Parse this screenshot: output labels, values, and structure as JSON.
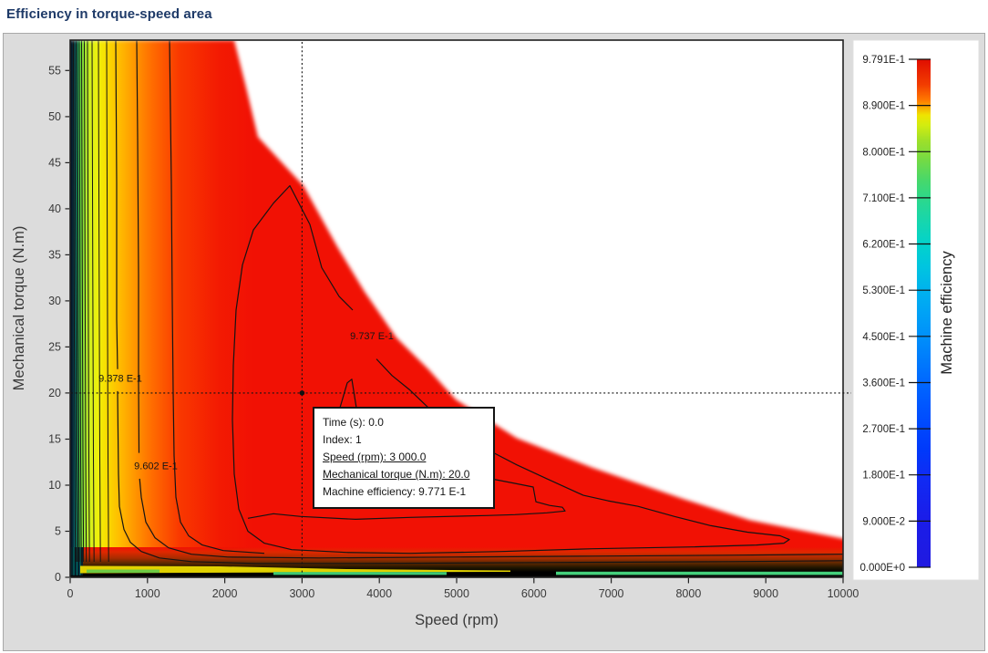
{
  "title": "Efficiency in torque-speed area",
  "tooltip": {
    "lines": [
      {
        "text": "Time (s): 0.0",
        "underline": false
      },
      {
        "text": "Index: 1",
        "underline": false
      },
      {
        "text": "Speed (rpm): 3 000.0",
        "underline": true
      },
      {
        "text": "Mechanical torque (N.m): 20.0",
        "underline": true
      },
      {
        "text": "Machine efficiency: 9.771 E-1",
        "underline": false
      }
    ]
  },
  "chart_data": {
    "type": "heatmap",
    "subtype": "filled-contour-efficiency-map",
    "title": "Efficiency in torque-speed area",
    "xlabel": "Speed (rpm)",
    "ylabel": "Mechanical torque (N.m)",
    "xlim": [
      0,
      10000
    ],
    "ylim": [
      0,
      58.3
    ],
    "x_ticks": [
      0,
      1000,
      2000,
      3000,
      4000,
      5000,
      6000,
      7000,
      8000,
      9000,
      10000
    ],
    "y_ticks": [
      0,
      5,
      10,
      15,
      20,
      25,
      30,
      35,
      40,
      45,
      50,
      55
    ],
    "grid": false,
    "colorbar": {
      "label": "Machine efficiency",
      "vmin": 0.0,
      "vmax": 0.9791,
      "tick_labels": [
        "9.791E-1",
        "8.900E-1",
        "8.000E-1",
        "7.100E-1",
        "6.200E-1",
        "5.300E-1",
        "4.500E-1",
        "3.600E-1",
        "2.700E-1",
        "1.800E-1",
        "9.000E-2",
        "0.000E+0"
      ]
    },
    "crosshair": {
      "speed_rpm": 3000,
      "torque_nm": 20,
      "efficiency": "9.771 E-1"
    },
    "max_torque_envelope": [
      [
        0,
        58.3
      ],
      [
        2122,
        58.3
      ],
      [
        2275,
        53.2
      ],
      [
        2429,
        47.8
      ],
      [
        3018,
        42.5
      ],
      [
        3454,
        35.9
      ],
      [
        3808,
        31.0
      ],
      [
        4221,
        26.0
      ],
      [
        4633,
        22.6
      ],
      [
        4987,
        19.3
      ],
      [
        5777,
        15.1
      ],
      [
        6755,
        11.9
      ],
      [
        7934,
        8.5
      ],
      [
        8795,
        6.2
      ],
      [
        10000,
        4.2
      ]
    ],
    "contours": [
      {
        "label": "9.378 E-1",
        "label_at": [
          649,
          21.6
        ],
        "segments": [
          [
            [
              590,
              58.3
            ],
            [
              601,
              42.8
            ],
            [
              601,
              28.0
            ],
            [
              613,
              22.6
            ]
          ],
          [
            [
              613,
              20.2
            ],
            [
              625,
              11.2
            ],
            [
              637,
              7.7
            ],
            [
              696,
              5.2
            ],
            [
              778,
              3.8
            ],
            [
              920,
              2.8
            ],
            [
              1156,
              2.1
            ],
            [
              1568,
              1.7
            ],
            [
              2394,
              1.5
            ],
            [
              3809,
              1.5
            ],
            [
              6167,
              1.6
            ],
            [
              8526,
              1.7
            ],
            [
              10000,
              1.8
            ]
          ]
        ]
      },
      {
        "label": "9.602 E-1",
        "label_at": [
          1108,
          12.1
        ],
        "segments": [
          [
            [
              861,
              58.3
            ],
            [
              873,
              47.8
            ],
            [
              884,
              32.9
            ],
            [
              884,
              21.1
            ],
            [
              890,
              13.5
            ]
          ],
          [
            [
              898,
              10.7
            ],
            [
              920,
              8.7
            ],
            [
              979,
              6.0
            ],
            [
              1097,
              4.3
            ],
            [
              1274,
              3.2
            ],
            [
              1568,
              2.5
            ],
            [
              2040,
              2.2
            ],
            [
              3219,
              2.1
            ],
            [
              4988,
              2.2
            ],
            [
              6757,
              2.3
            ],
            [
              8526,
              2.4
            ],
            [
              10000,
              2.5
            ]
          ]
        ]
      },
      {
        "label": null,
        "label_at": null,
        "segments": [
          [
            [
              1285,
              58.3
            ],
            [
              1309,
              42.8
            ],
            [
              1321,
              30.0
            ],
            [
              1333,
              20.1
            ],
            [
              1344,
              13.2
            ],
            [
              1368,
              8.7
            ],
            [
              1427,
              6.0
            ],
            [
              1533,
              4.5
            ],
            [
              1710,
              3.5
            ],
            [
              1981,
              2.9
            ],
            [
              2512,
              2.6
            ]
          ]
        ]
      },
      {
        "label": "9.737 E-1",
        "label_at": [
          3903,
          26.2
        ],
        "segments": [
          [
            [
              3962,
              23.7
            ],
            [
              4163,
              21.9
            ],
            [
              4399,
              20.3
            ],
            [
              4634,
              18.4
            ],
            [
              5342,
              14.1
            ],
            [
              5778,
              12.2
            ],
            [
              6167,
              10.7
            ],
            [
              6639,
              8.9
            ],
            [
              6958,
              8.3
            ],
            [
              7347,
              7.7
            ],
            [
              7818,
              6.6
            ],
            [
              8290,
              5.6
            ],
            [
              8762,
              4.9
            ],
            [
              9186,
              4.5
            ],
            [
              9304,
              4.1
            ],
            [
              9233,
              3.7
            ],
            [
              8880,
              3.5
            ],
            [
              8054,
              3.3
            ],
            [
              6757,
              3.1
            ],
            [
              5578,
              2.8
            ],
            [
              4399,
              2.6
            ],
            [
              3573,
              2.7
            ],
            [
              2866,
              3.0
            ],
            [
              2512,
              3.7
            ],
            [
              2300,
              5.0
            ],
            [
              2182,
              7.4
            ],
            [
              2123,
              11.2
            ],
            [
              2099,
              17.1
            ],
            [
              2111,
              23.0
            ],
            [
              2146,
              29.0
            ],
            [
              2229,
              33.9
            ],
            [
              2370,
              37.7
            ],
            [
              2630,
              40.6
            ],
            [
              2842,
              42.5
            ],
            [
              3101,
              38.3
            ],
            [
              3255,
              33.6
            ],
            [
              3479,
              30.5
            ],
            [
              3656,
              29.0
            ]
          ]
        ]
      },
      {
        "label": null,
        "label_at": null,
        "segments": [
          [
            [
              3491,
              18.4
            ],
            [
              3585,
              21.1
            ],
            [
              3644,
              21.5
            ],
            [
              3703,
              18.4
            ]
          ],
          [
            [
              5377,
              10.8
            ],
            [
              5754,
              10.2
            ],
            [
              5990,
              9.8
            ],
            [
              6026,
              8.2
            ],
            [
              6203,
              7.8
            ],
            [
              6368,
              7.6
            ],
            [
              6403,
              7.2
            ],
            [
              6167,
              7.0
            ],
            [
              5754,
              6.8
            ],
            [
              5377,
              6.7
            ],
            [
              4399,
              6.5
            ],
            [
              3691,
              6.3
            ],
            [
              2984,
              6.6
            ],
            [
              2630,
              6.9
            ],
            [
              2300,
              6.4
            ]
          ]
        ]
      }
    ],
    "minor_contours_rpm": [
      41,
      59,
      77,
      94,
      118,
      147,
      183,
      224,
      283,
      366,
      472
    ]
  },
  "colors": {
    "panel_bg": "#dcdcdc",
    "panel_border": "#a8a8a8",
    "title_text": "#1e3a68",
    "field_red": "#f11104",
    "contour_line": "#141414",
    "axis_text": "#3a3a3a",
    "white_region": "#ffffff",
    "left_band_stops": [
      [
        "0%",
        "#010318"
      ],
      [
        "1.8%",
        "#083440"
      ],
      [
        "3%",
        "#00b2aa"
      ],
      [
        "4%",
        "#20cc6e"
      ],
      [
        "5.6%",
        "#66dc3e"
      ],
      [
        "8.5%",
        "#aae82e"
      ],
      [
        "11.5%",
        "#d8f01a"
      ],
      [
        "15.5%",
        "#f0f00a"
      ],
      [
        "20%",
        "#f8dc00"
      ],
      [
        "27%",
        "#ffbc00"
      ],
      [
        "35%",
        "#ff9800"
      ],
      [
        "45%",
        "#ff6c00"
      ],
      [
        "60%",
        "#f93800"
      ],
      [
        "82%",
        "#f31a02"
      ],
      [
        "100%",
        "#f11104"
      ]
    ],
    "bottom_band_stops": [
      [
        "0%",
        "#f11104"
      ],
      [
        "15%",
        "#e02800"
      ],
      [
        "35%",
        "#a62c00"
      ],
      [
        "50%",
        "#5c2800"
      ],
      [
        "65%",
        "#1c1400"
      ],
      [
        "78%",
        "#000000"
      ],
      [
        "100%",
        "#000000"
      ]
    ],
    "jet_stops": [
      [
        "0%",
        "#e00d00"
      ],
      [
        "5%",
        "#f23d00"
      ],
      [
        "8%",
        "#ff7800"
      ],
      [
        "9.5%",
        "#f8ad00"
      ],
      [
        "11%",
        "#efe400"
      ],
      [
        "13%",
        "#d2ec10"
      ],
      [
        "16%",
        "#9ee029"
      ],
      [
        "20%",
        "#72da46"
      ],
      [
        "24%",
        "#46d86c"
      ],
      [
        "27.5%",
        "#2cd88c"
      ],
      [
        "32%",
        "#16d6ae"
      ],
      [
        "36.5%",
        "#02d2cc"
      ],
      [
        "41%",
        "#00c4e0"
      ],
      [
        "45.5%",
        "#00b2ee"
      ],
      [
        "50%",
        "#00a2f6"
      ],
      [
        "54.5%",
        "#0090fa"
      ],
      [
        "59%",
        "#007cfc"
      ],
      [
        "63.5%",
        "#0068ff"
      ],
      [
        "68%",
        "#0057ff"
      ],
      [
        "72.5%",
        "#0047fd"
      ],
      [
        "77%",
        "#0039fa"
      ],
      [
        "82%",
        "#102cf4"
      ],
      [
        "90%",
        "#1a1de9"
      ],
      [
        "100%",
        "#201ae0"
      ]
    ]
  }
}
